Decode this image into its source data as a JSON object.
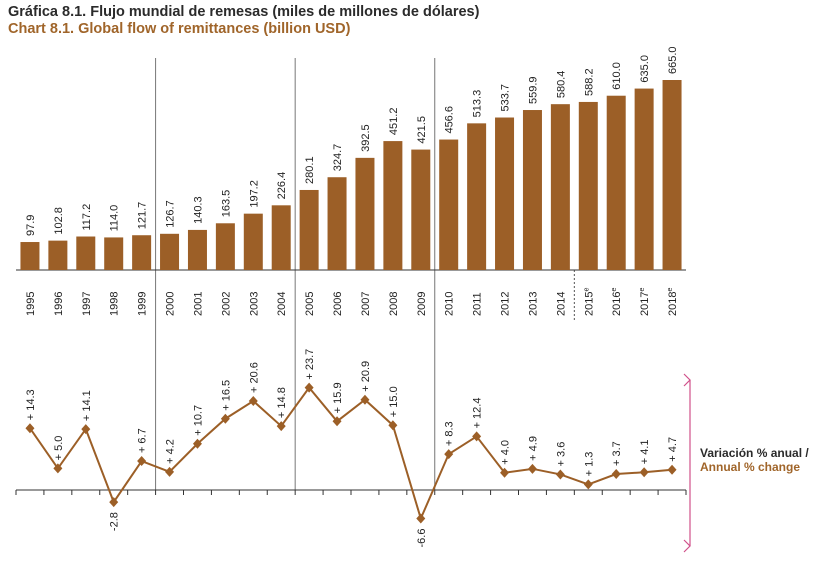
{
  "title": "Gráfica 8.1. Flujo mundial de remesas (miles de millones de dólares)",
  "subtitle": "Chart 8.1. Global flow of remittances (billion USD)",
  "annual_change_label_es": "Variación % anual /",
  "annual_change_label_en": "Annual % change",
  "colors": {
    "bar": "#9c5f27",
    "line": "#9c5f27",
    "title_accent": "#a0652a",
    "bracket": "#d0508a"
  },
  "chart_data": [
    {
      "type": "bar",
      "categories": [
        "1995",
        "1996",
        "1997",
        "1998",
        "1999",
        "2000",
        "2001",
        "2002",
        "2003",
        "2004",
        "2005",
        "2006",
        "2007",
        "2008",
        "2009",
        "2010",
        "2011",
        "2012",
        "2013",
        "2014",
        "2015e",
        "2016e",
        "2017e",
        "2018e"
      ],
      "values": [
        97.9,
        102.8,
        117.2,
        114.0,
        121.7,
        126.7,
        140.3,
        163.5,
        197.2,
        226.4,
        280.1,
        324.7,
        392.5,
        451.2,
        421.5,
        456.6,
        513.3,
        533.7,
        559.9,
        580.4,
        588.2,
        610.0,
        635.0,
        665.0
      ],
      "data_labels": [
        "97.9",
        "102.8",
        "117.2",
        "114.0",
        "121.7",
        "126.7",
        "140.3",
        "163.5",
        "197.2",
        "226.4",
        "280.1",
        "324.7",
        "392.5",
        "451.2",
        "421.5",
        "456.6",
        "513.3",
        "533.7",
        "559.9",
        "580.4",
        "588.2",
        "610.0",
        "635.0",
        "665.0"
      ],
      "ylim": [
        0,
        700
      ]
    },
    {
      "type": "line",
      "categories": [
        "1995",
        "1996",
        "1997",
        "1998",
        "1999",
        "2000",
        "2001",
        "2002",
        "2003",
        "2004",
        "2005",
        "2006",
        "2007",
        "2008",
        "2009",
        "2010",
        "2011",
        "2012",
        "2013",
        "2014",
        "2015e",
        "2016e",
        "2017e",
        "2018e"
      ],
      "values": [
        14.3,
        5.0,
        14.1,
        -2.8,
        6.7,
        4.2,
        10.7,
        16.5,
        20.6,
        14.8,
        23.7,
        15.9,
        20.9,
        15.0,
        -6.6,
        8.3,
        12.4,
        4.0,
        4.9,
        3.6,
        1.3,
        3.7,
        4.1,
        4.7
      ],
      "data_labels": [
        "+ 14.3",
        "+ 5.0",
        "+ 14.1",
        "-2.8",
        "+ 6.7",
        "+ 4.2",
        "+ 10.7",
        "+ 16.5",
        "+ 20.6",
        "+ 14.8",
        "+ 23.7",
        "+ 15.9",
        "+ 20.9",
        "+ 15.0",
        "-6.6",
        "+ 8.3",
        "+ 12.4",
        "+ 4.0",
        "+ 4.9",
        "+ 3.6",
        "+ 1.3",
        "+ 3.7",
        "+ 4.1",
        "+ 4.7"
      ]
    }
  ]
}
